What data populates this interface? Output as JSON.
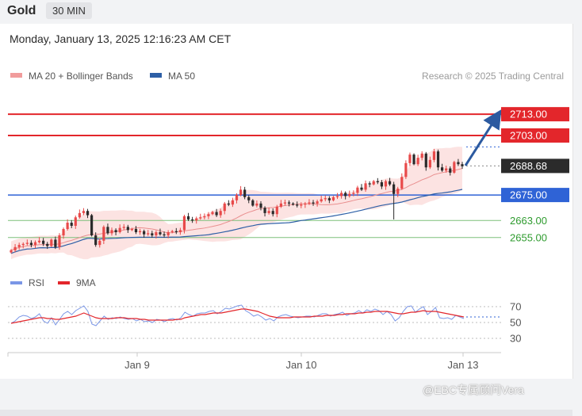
{
  "header": {
    "symbol": "Gold",
    "timeframe": "30 MIN",
    "datetime": "Monday, January 13, 2025 12:16:23 AM CET"
  },
  "legend": {
    "ma20_label": "MA 20 + Bollinger Bands",
    "ma50_label": "MA 50",
    "credit": "Research © 2025 Trading Central"
  },
  "rsi_legend": {
    "rsi_label": "RSI",
    "ma_label": "9MA"
  },
  "watermark": "@EBC专属顾问Vera",
  "colors": {
    "resistance": "#e3262b",
    "support": "#2f63d6",
    "target_line": "#7dc07a",
    "target_text": "#2e9b2e",
    "bull": "#e84a4a",
    "bear": "#2a2a2a",
    "ma20": "#e98f8f",
    "ma50": "#2d5fa6",
    "band_fill": "#fbdedd",
    "rsi": "#7a96e6",
    "rsi_ma": "#e3262b",
    "arrow": "#2c5aa0",
    "last_price_bg": "#2b2b2b"
  },
  "chart_data": [
    {
      "type": "candlestick",
      "title": "Gold",
      "x_ticks": [
        "Jan 9",
        "Jan 10",
        "Jan 13"
      ],
      "ylim": [
        2640,
        2722
      ],
      "last_price": 2688.68,
      "levels": [
        {
          "value": 2713.0,
          "label": "2713.00",
          "role": "resistance"
        },
        {
          "value": 2703.0,
          "label": "2703.00",
          "role": "resistance"
        },
        {
          "value": 2688.68,
          "label": "2688.68",
          "role": "last"
        },
        {
          "value": 2675.0,
          "label": "2675.00",
          "role": "support"
        },
        {
          "value": 2663.0,
          "label": "2663.00",
          "role": "target"
        },
        {
          "value": 2655.0,
          "label": "2655.00",
          "role": "target"
        }
      ],
      "close": [
        2649.0,
        2650.5,
        2651.5,
        2652.0,
        2652.5,
        2651.5,
        2652.8,
        2653.5,
        2652.0,
        2651.0,
        2654.0,
        2650.5,
        2656.0,
        2659.0,
        2662.0,
        2660.5,
        2664.5,
        2666.5,
        2667.5,
        2665.5,
        2656.0,
        2651.5,
        2653.5,
        2660.0,
        2657.0,
        2658.5,
        2657.5,
        2659.5,
        2660.0,
        2658.5,
        2659.0,
        2657.5,
        2658.0,
        2656.5,
        2657.0,
        2656.0,
        2657.5,
        2656.5,
        2656.0,
        2657.5,
        2658.0,
        2657.5,
        2658.5,
        2665.0,
        2663.5,
        2663.0,
        2664.0,
        2664.5,
        2665.0,
        2666.0,
        2667.0,
        2665.5,
        2667.5,
        2671.0,
        2670.5,
        2672.5,
        2675.0,
        2677.5,
        2674.0,
        2672.5,
        2670.0,
        2671.0,
        2669.0,
        2666.5,
        2667.5,
        2666.0,
        2669.5,
        2671.0,
        2671.5,
        2671.0,
        2670.5,
        2670.0,
        2670.5,
        2671.0,
        2671.5,
        2671.0,
        2672.0,
        2673.0,
        2673.5,
        2672.5,
        2674.0,
        2674.5,
        2676.0,
        2674.5,
        2675.5,
        2676.0,
        2678.5,
        2677.5,
        2680.5,
        2680.0,
        2681.5,
        2681.0,
        2679.0,
        2681.5,
        2680.0,
        2675.5,
        2678.0,
        2683.5,
        2690.0,
        2694.0,
        2689.5,
        2692.5,
        2694.5,
        2688.0,
        2691.5,
        2695.5,
        2688.0,
        2686.5,
        2687.5,
        2685.5,
        2690.5,
        2689.5,
        2688.5
      ],
      "rsi_ylim": [
        25,
        75
      ],
      "rsi_ticks": [
        70,
        50,
        30
      ],
      "rsi": [
        49,
        52,
        57,
        59,
        58,
        55,
        57,
        61,
        52,
        49,
        56,
        47,
        54,
        61,
        64,
        60,
        65,
        68,
        71,
        64,
        48,
        46,
        52,
        58,
        54,
        56,
        55,
        57,
        55,
        54,
        55,
        52,
        54,
        51,
        52,
        50,
        54,
        53,
        51,
        54,
        55,
        53,
        56,
        63,
        60,
        58,
        61,
        62,
        62,
        64,
        65,
        61,
        64,
        68,
        67,
        69,
        71,
        72,
        65,
        62,
        58,
        60,
        57,
        53,
        55,
        52,
        57,
        59,
        60,
        58,
        57,
        56,
        57,
        58,
        58,
        57,
        59,
        61,
        61,
        58,
        60,
        61,
        63,
        59,
        61,
        62,
        65,
        62,
        66,
        64,
        67,
        65,
        60,
        64,
        60,
        52,
        56,
        64,
        70,
        71,
        63,
        67,
        70,
        60,
        64,
        69,
        56,
        55,
        56,
        54,
        59,
        57,
        55
      ],
      "rsi_ma": [
        49,
        50,
        51,
        52,
        53,
        54,
        55,
        56,
        56,
        55,
        55,
        54,
        54,
        55,
        56,
        57,
        58,
        60,
        62,
        60,
        58,
        56,
        55,
        55,
        55,
        55,
        56,
        56,
        56,
        55,
        55,
        55,
        54,
        54,
        53,
        53,
        53,
        53,
        53,
        53,
        53,
        54,
        54,
        56,
        57,
        58,
        59,
        60,
        60,
        61,
        62,
        62,
        62,
        63,
        64,
        65,
        66,
        67,
        67,
        66,
        65,
        64,
        62,
        60,
        58,
        57,
        56,
        56,
        56,
        56,
        57,
        57,
        57,
        57,
        57,
        58,
        58,
        58,
        59,
        59,
        59,
        60,
        60,
        61,
        61,
        61,
        62,
        62,
        63,
        63,
        64,
        64,
        64,
        64,
        63,
        62,
        61,
        61,
        62,
        63,
        63,
        64,
        65,
        64,
        64,
        64,
        63,
        62,
        61,
        60,
        59,
        58,
        57
      ]
    }
  ]
}
